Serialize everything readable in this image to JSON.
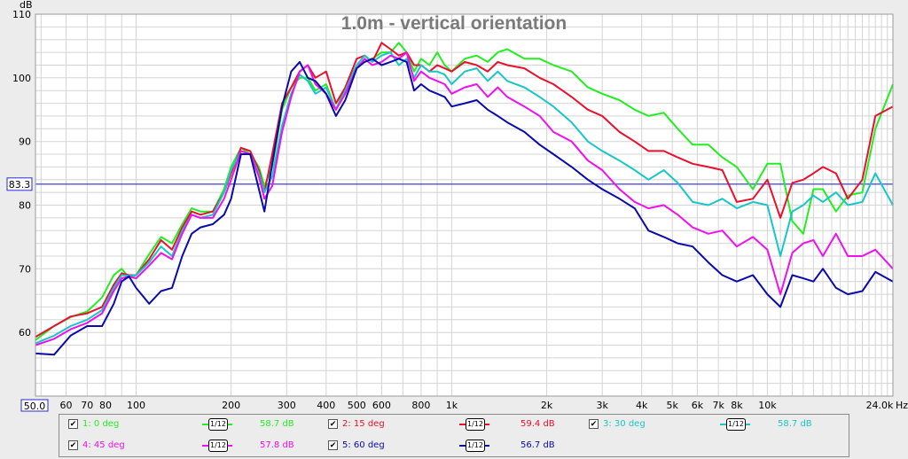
{
  "colors": {
    "background": "#ececec",
    "plot_bg": "#ffffff",
    "grid": "#d4d4d4",
    "marker_line": "#2a2ad8",
    "series": [
      "#22ee22",
      "#e8102c",
      "#18c6c8",
      "#ee10ee",
      "#0a0aa8"
    ]
  },
  "legend": {
    "items": [
      {
        "label": "1: 0 deg",
        "smoothing": "1/12",
        "level": "58.7 dB"
      },
      {
        "label": "2: 15 deg",
        "smoothing": "1/12",
        "level": "59.4 dB"
      },
      {
        "label": "3: 30 deg",
        "smoothing": "1/12",
        "level": "58.7 dB"
      },
      {
        "label": "4: 45 deg",
        "smoothing": "1/12",
        "level": "57.8 dB"
      },
      {
        "label": "5: 60 deg",
        "smoothing": "1/12",
        "level": "56.7 dB"
      }
    ]
  },
  "chart_data": {
    "type": "line",
    "title": "1.0m - vertical orientation",
    "ylabel": "dB",
    "xlabel": "Hz",
    "xscale": "log",
    "xlim": [
      48,
      25000
    ],
    "ylim": [
      50,
      110
    ],
    "grid": true,
    "y_ticks": [
      "50.0",
      "60",
      "70",
      "80",
      "90",
      "100",
      "110"
    ],
    "x_ticks": [
      "50.0",
      "60",
      "70",
      "80",
      "100",
      "200",
      "300",
      "400",
      "500",
      "600",
      "800",
      "1k",
      "2k",
      "3k",
      "4k",
      "5k",
      "6k",
      "7k",
      "8k",
      "10k",
      "24.0k"
    ],
    "marker": {
      "value": 83.3,
      "label": "83.3"
    },
    "x": [
      48,
      55,
      62,
      70,
      78,
      85,
      90,
      95,
      100,
      110,
      120,
      130,
      140,
      150,
      160,
      175,
      190,
      200,
      215,
      230,
      245,
      255,
      270,
      290,
      310,
      330,
      350,
      370,
      400,
      430,
      460,
      500,
      530,
      560,
      600,
      640,
      680,
      720,
      760,
      800,
      850,
      900,
      950,
      1000,
      1100,
      1200,
      1300,
      1400,
      1500,
      1700,
      1900,
      2100,
      2400,
      2700,
      3000,
      3400,
      3800,
      4200,
      4700,
      5200,
      5800,
      6500,
      7200,
      8000,
      9000,
      10000,
      11000,
      12000,
      13000,
      14000,
      15000,
      16500,
      18000,
      20000,
      22000,
      25000
    ],
    "series": [
      {
        "name": "1: 0 deg",
        "values": [
          58.8,
          61.0,
          62.4,
          63.3,
          65.5,
          69.0,
          70.0,
          68.6,
          69.0,
          72.3,
          75.0,
          74.0,
          77.0,
          79.5,
          79.0,
          79.0,
          82.5,
          86.0,
          89.0,
          88.0,
          86.0,
          83.0,
          86.0,
          95.0,
          98.5,
          100.0,
          100.0,
          98.0,
          99.0,
          95.0,
          98.5,
          102.0,
          102.5,
          103.0,
          104.0,
          104.0,
          105.5,
          104.0,
          101.0,
          103.0,
          102.0,
          104.0,
          102.0,
          101.0,
          103.0,
          103.5,
          102.5,
          104.0,
          104.5,
          103.0,
          103.0,
          102.0,
          101.0,
          98.5,
          97.5,
          96.5,
          95.0,
          94.0,
          94.5,
          92.0,
          89.5,
          89.5,
          87.5,
          86.0,
          82.5,
          86.5,
          86.5,
          77.5,
          75.5,
          82.5,
          82.5,
          79.0,
          81.5,
          82.0,
          92.0,
          99.0
        ]
      },
      {
        "name": "2: 15 deg",
        "values": [
          59.3,
          61.0,
          62.5,
          63.0,
          64.0,
          67.5,
          69.3,
          69.0,
          69.0,
          71.5,
          74.5,
          73.0,
          76.5,
          79.0,
          78.5,
          79.0,
          82.0,
          85.0,
          89.0,
          88.5,
          85.5,
          82.0,
          88.0,
          96.0,
          98.5,
          101.0,
          102.0,
          100.0,
          101.0,
          96.0,
          98.5,
          103.0,
          103.5,
          102.5,
          105.5,
          104.5,
          103.5,
          104.0,
          102.0,
          102.0,
          101.0,
          102.0,
          101.5,
          101.0,
          102.5,
          102.0,
          101.0,
          102.5,
          102.0,
          101.5,
          100.0,
          99.0,
          97.0,
          95.0,
          94.0,
          91.5,
          90.0,
          88.5,
          88.5,
          87.5,
          86.5,
          86.0,
          85.5,
          80.5,
          81.0,
          84.0,
          78.0,
          83.5,
          84.0,
          85.0,
          86.0,
          85.0,
          81.0,
          84.0,
          94.0,
          95.5
        ]
      },
      {
        "name": "3: 30 deg",
        "values": [
          58.3,
          59.5,
          61.0,
          62.0,
          63.5,
          67.0,
          69.0,
          68.9,
          69.0,
          71.0,
          73.5,
          72.0,
          76.0,
          78.5,
          78.0,
          78.5,
          82.0,
          85.5,
          88.5,
          88.0,
          85.0,
          82.0,
          84.5,
          92.5,
          97.5,
          100.5,
          99.5,
          97.5,
          98.5,
          95.0,
          98.0,
          102.0,
          103.5,
          102.5,
          103.5,
          104.0,
          102.0,
          103.0,
          100.0,
          102.0,
          101.0,
          101.0,
          100.5,
          99.0,
          101.0,
          101.5,
          99.5,
          101.0,
          99.5,
          98.5,
          97.0,
          95.5,
          93.0,
          90.0,
          88.5,
          87.0,
          85.5,
          84.0,
          85.5,
          83.5,
          80.5,
          80.0,
          81.0,
          79.5,
          80.5,
          80.0,
          72.0,
          79.0,
          80.0,
          81.5,
          80.5,
          82.0,
          80.0,
          80.5,
          85.0,
          80.0
        ]
      },
      {
        "name": "4: 45 deg",
        "values": [
          58.0,
          59.0,
          60.5,
          61.5,
          63.0,
          66.5,
          68.5,
          68.8,
          68.5,
          70.5,
          72.5,
          71.5,
          75.5,
          78.5,
          78.0,
          78.0,
          81.0,
          84.0,
          88.5,
          88.0,
          84.5,
          81.0,
          83.0,
          91.5,
          97.0,
          101.0,
          102.0,
          99.0,
          97.5,
          95.0,
          97.5,
          101.5,
          103.0,
          102.0,
          102.5,
          103.5,
          103.0,
          104.0,
          99.5,
          101.0,
          100.0,
          99.5,
          99.0,
          97.5,
          98.5,
          99.0,
          97.0,
          98.5,
          97.0,
          95.5,
          94.0,
          91.5,
          90.0,
          87.0,
          85.5,
          82.5,
          80.5,
          79.5,
          80.0,
          78.5,
          76.5,
          75.5,
          76.0,
          73.5,
          75.0,
          73.0,
          66.0,
          72.5,
          74.0,
          74.5,
          72.0,
          75.5,
          72.0,
          72.0,
          73.0,
          70.0
        ]
      },
      {
        "name": "5: 60 deg",
        "values": [
          56.7,
          56.5,
          59.5,
          61.0,
          61.0,
          64.5,
          68.0,
          68.8,
          67.0,
          64.5,
          66.5,
          67.0,
          72.0,
          75.5,
          76.5,
          77.0,
          78.5,
          81.0,
          88.0,
          88.0,
          82.5,
          79.0,
          86.5,
          95.5,
          101.0,
          102.5,
          100.0,
          99.5,
          97.5,
          94.0,
          96.5,
          101.5,
          102.5,
          103.0,
          102.0,
          102.5,
          103.0,
          102.5,
          98.0,
          99.0,
          98.0,
          97.5,
          97.0,
          95.5,
          96.0,
          96.5,
          95.0,
          94.0,
          93.0,
          91.5,
          89.5,
          88.0,
          86.0,
          84.0,
          82.5,
          81.0,
          79.5,
          76.0,
          75.0,
          74.0,
          73.5,
          71.0,
          69.0,
          68.0,
          69.0,
          66.0,
          64.0,
          69.0,
          68.5,
          68.0,
          70.0,
          67.0,
          66.0,
          66.5,
          69.5,
          68.0
        ]
      }
    ]
  }
}
